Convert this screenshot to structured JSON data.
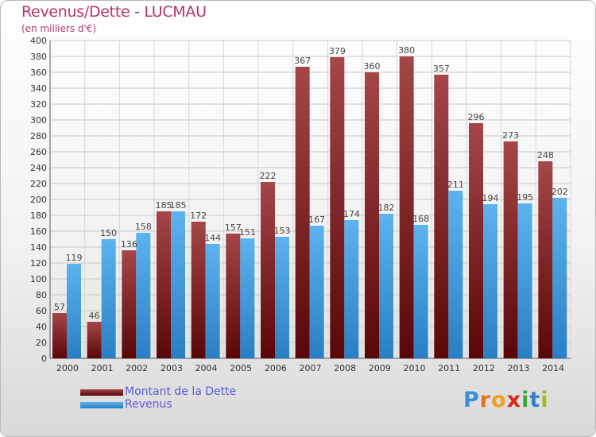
{
  "chart_data": {
    "type": "bar",
    "title": "Revenus/Dette - LUCMAU",
    "subtitle": "(en milliers d'€)",
    "categories": [
      "2000",
      "2001",
      "2002",
      "2003",
      "2004",
      "2005",
      "2006",
      "2007",
      "2008",
      "2009",
      "2010",
      "2011",
      "2012",
      "2013",
      "2014"
    ],
    "series": [
      {
        "name": "Montant de la Dette",
        "color": "#6e0f12",
        "values": [
          57,
          46,
          136,
          185,
          172,
          157,
          222,
          367,
          379,
          360,
          380,
          357,
          296,
          273,
          248
        ]
      },
      {
        "name": "Revenus",
        "color": "#3d9be0",
        "values": [
          119,
          150,
          158,
          185,
          144,
          151,
          153,
          167,
          174,
          182,
          168,
          211,
          194,
          195,
          202
        ]
      }
    ],
    "ylim": [
      0,
      400
    ],
    "ytick_step": 20,
    "grid": true,
    "legend_position": "bottom-left"
  },
  "logo": {
    "letters": [
      {
        "char": "P",
        "color": "#3a8fd8"
      },
      {
        "char": "r",
        "color": "#e2731f"
      },
      {
        "char": "o",
        "color": "#f0a020"
      },
      {
        "char": "x",
        "color": "#d8281c"
      },
      {
        "char": "i",
        "color": "#3fa535"
      },
      {
        "char": "t",
        "color": "#2f7fd0"
      },
      {
        "char": "i",
        "color": "#9bc21a"
      }
    ]
  }
}
